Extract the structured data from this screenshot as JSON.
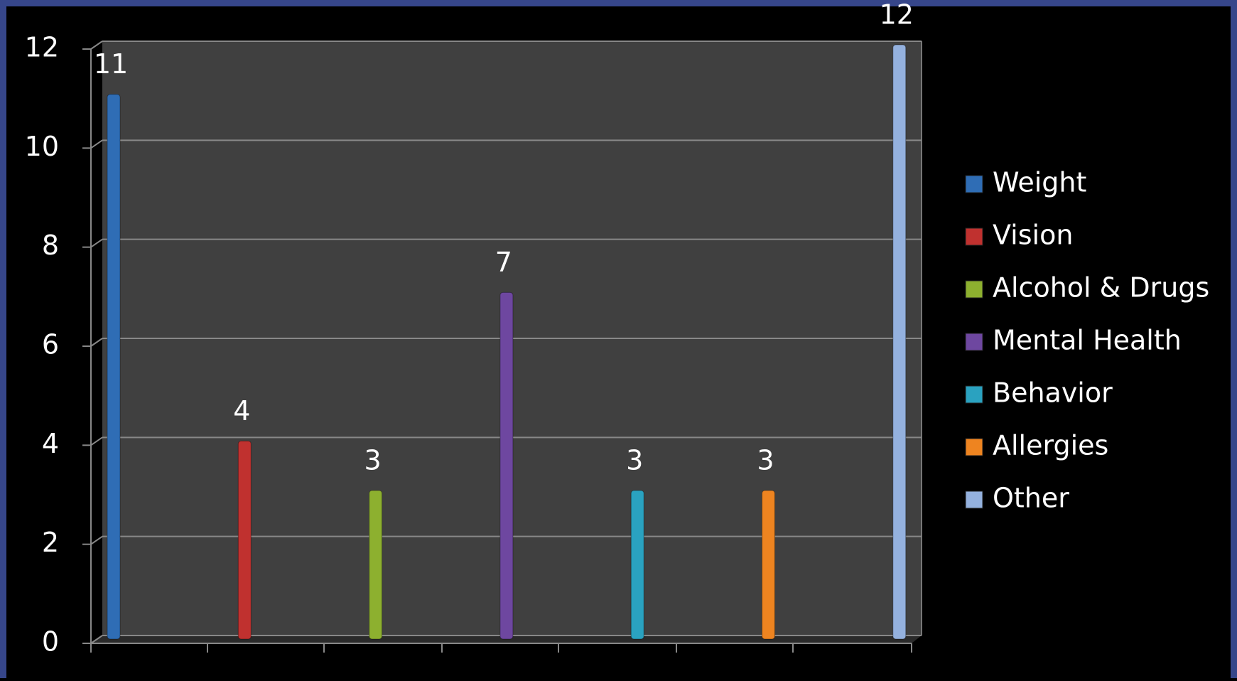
{
  "chart_data": {
    "type": "bar",
    "series": [
      {
        "name": "Weight",
        "color": "#2f6db5",
        "values": [
          11
        ]
      },
      {
        "name": "Vision",
        "color": "#c0312f",
        "values": [
          4
        ]
      },
      {
        "name": "Alcohol & Drugs",
        "color": "#8db02f",
        "values": [
          3
        ]
      },
      {
        "name": "Mental Health",
        "color": "#6e47a0",
        "values": [
          7
        ]
      },
      {
        "name": "Behavior",
        "color": "#2aa2c0",
        "values": [
          3
        ]
      },
      {
        "name": "Allergies",
        "color": "#ee8420",
        "values": [
          3
        ]
      },
      {
        "name": "Other",
        "color": "#94b1de",
        "values": [
          12
        ]
      }
    ],
    "ylim": [
      0,
      12
    ],
    "yticks": [
      0,
      2,
      4,
      6,
      8,
      10,
      12
    ],
    "grid": true,
    "legend": "right"
  }
}
